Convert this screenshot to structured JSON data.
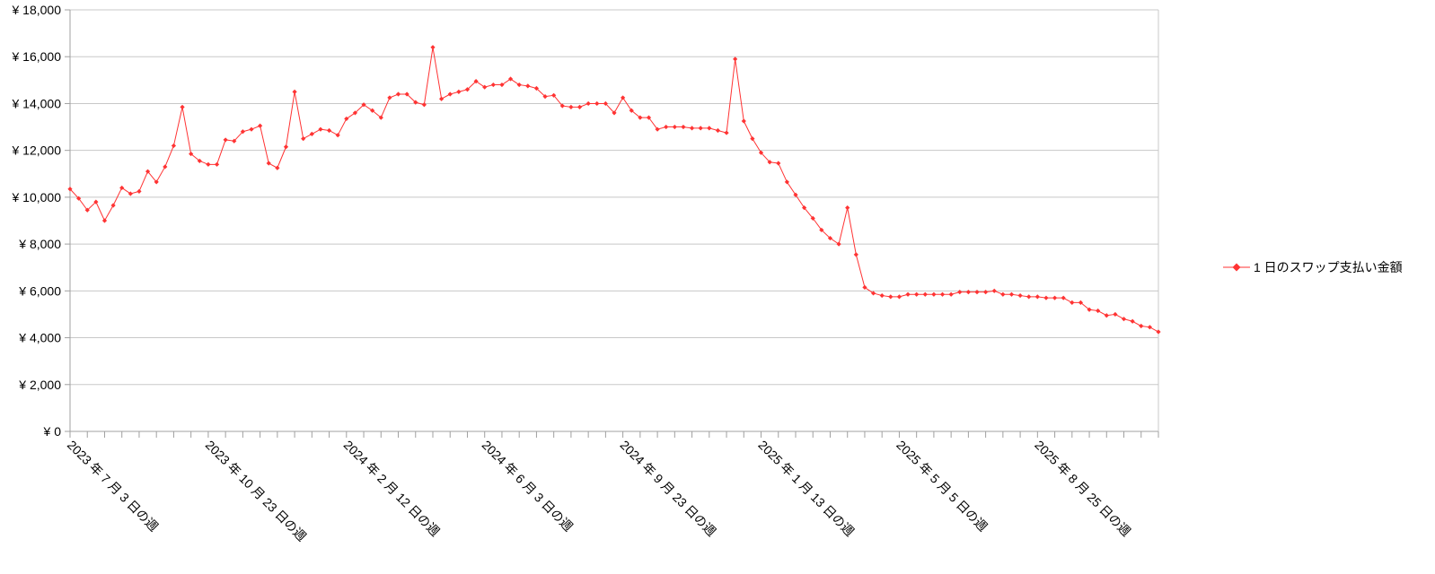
{
  "colors": {
    "series": "#ff3333",
    "grid": "#c8c8c8",
    "axis": "#a0a0a0"
  },
  "chart_data": {
    "type": "line",
    "title": "",
    "xlabel": "",
    "ylabel": "",
    "ylim": [
      0,
      18000
    ],
    "y_ticks": [
      "¥ 0",
      "¥ 2,000",
      "¥ 4,000",
      "¥ 6,000",
      "¥ 8,000",
      "¥ 10,000",
      "¥ 12,000",
      "¥ 14,000",
      "¥ 16,000",
      "¥ 18,000"
    ],
    "x_tick_labels": [
      "2023 年 7 月 3 日の週",
      "2023 年 10 月 23 日の週",
      "2024 年 2 月 12 日の週",
      "2024 年 6 月 3 日の週",
      "2024 年 9 月 23 日の週",
      "2025 年 1 月 13 日の週",
      "2025 年 5 月 5 日の週",
      "2025 年 8 月 25 日の週"
    ],
    "x_label_every": 16,
    "grid": true,
    "legend_position": "right",
    "series": [
      {
        "name": "1 日のスワップ支払い金額",
        "marker": "diamond",
        "values": [
          10350,
          9950,
          9450,
          9800,
          9000,
          9650,
          10400,
          10150,
          10250,
          11100,
          10650,
          11300,
          12200,
          13850,
          11850,
          11550,
          11400,
          11400,
          12450,
          12400,
          12800,
          12900,
          13050,
          11450,
          11250,
          12150,
          14500,
          12500,
          12700,
          12900,
          12850,
          12650,
          13350,
          13600,
          13950,
          13700,
          13400,
          14250,
          14400,
          14400,
          14050,
          13950,
          16400,
          14200,
          14400,
          14500,
          14600,
          14950,
          14700,
          14800,
          14800,
          15050,
          14800,
          14750,
          14650,
          14300,
          14350,
          13900,
          13850,
          13850,
          14000,
          14000,
          14000,
          13600,
          14250,
          13700,
          13400,
          13400,
          12900,
          13000,
          13000,
          13000,
          12950,
          12950,
          12950,
          12850,
          12750,
          15900,
          13250,
          12500,
          11900,
          11500,
          11450,
          10650,
          10100,
          9550,
          9100,
          8600,
          8250,
          8000,
          9550,
          7550,
          6150,
          5900,
          5800,
          5750,
          5750,
          5850,
          5850,
          5850,
          5850,
          5850,
          5850,
          5950,
          5950,
          5950,
          5950,
          6000,
          5850,
          5850,
          5800,
          5750,
          5750,
          5700,
          5700,
          5700,
          5500,
          5500,
          5200,
          5150,
          4950,
          5000,
          4800,
          4700,
          4500,
          4450,
          4250
        ]
      }
    ]
  }
}
